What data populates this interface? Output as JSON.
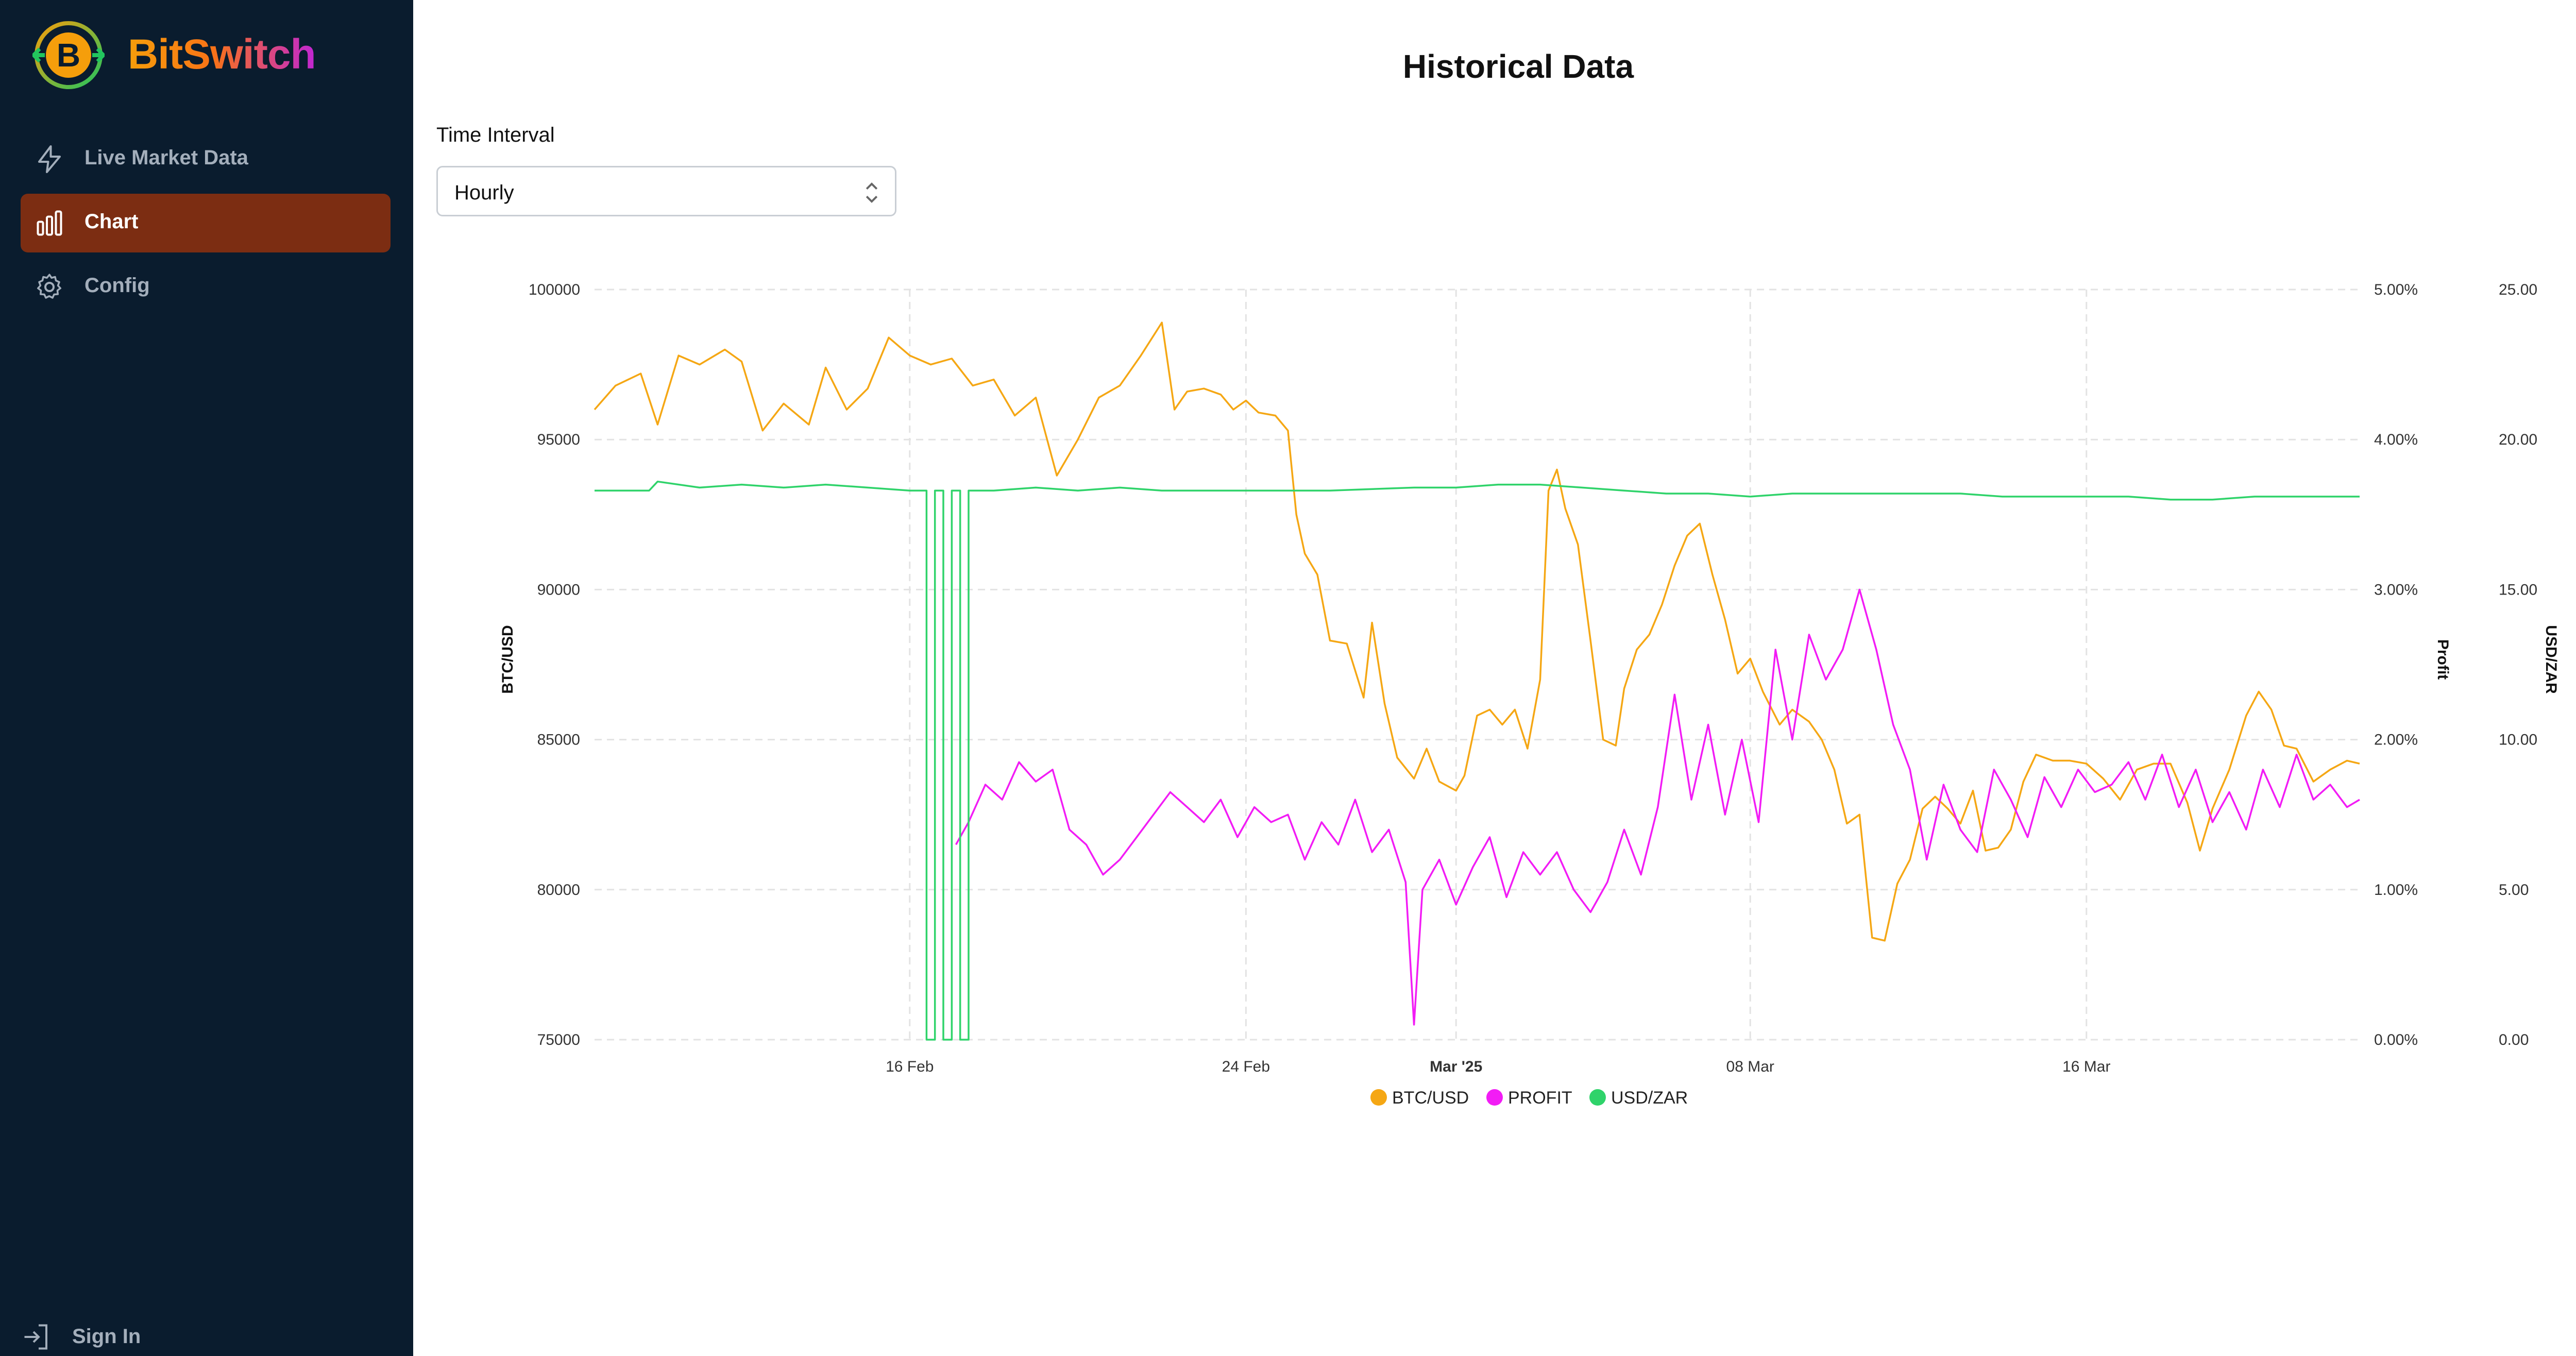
{
  "app": {
    "name": "BitSwitch"
  },
  "sidebar": {
    "items": [
      {
        "label": "Live Market Data",
        "icon": "lightning-icon",
        "active": false
      },
      {
        "label": "Chart",
        "icon": "bar-chart-icon",
        "active": true
      },
      {
        "label": "Config",
        "icon": "gear-icon",
        "active": false
      }
    ],
    "sign_in": "Sign In"
  },
  "page": {
    "title": "Historical Data",
    "time_interval_label": "Time Interval",
    "time_interval_value": "Hourly"
  },
  "colors": {
    "btc": "#f5a714",
    "profit": "#f21cf5",
    "usdzar": "#2fd36a",
    "sidebar_bg": "#0a1c2e",
    "active_bg": "#7c2d12"
  },
  "chart_data": {
    "type": "line",
    "x_ticks": [
      "16 Feb",
      "24 Feb",
      "Mar '25",
      "08 Mar",
      "16 Mar"
    ],
    "x_tick_days": [
      16,
      24,
      29,
      36,
      44
    ],
    "x_range_days": [
      8.5,
      50.5
    ],
    "axes": {
      "left": {
        "title": "BTC/USD",
        "ticks": [
          "100000",
          "95000",
          "90000",
          "85000",
          "80000",
          "75000"
        ],
        "range": [
          75000,
          100000
        ]
      },
      "right1": {
        "title": "",
        "ticks": [
          "5.00%",
          "4.00%",
          "3.00%",
          "2.00%",
          "1.00%",
          "0.00%"
        ],
        "range": [
          0,
          5
        ]
      },
      "right2": {
        "title": "USD/ZAR",
        "ticks": [
          "25.00",
          "20.00",
          "15.00",
          "10.00",
          "5.00",
          "0.00"
        ],
        "range": [
          0,
          25
        ]
      },
      "profit_title": "Profit"
    },
    "grid": true,
    "legend": {
      "position": "bottom",
      "entries": [
        "BTC/USD",
        "PROFIT",
        "USD/ZAR"
      ]
    },
    "series": [
      {
        "name": "BTC/USD",
        "axis": "left",
        "points": [
          [
            8.5,
            96000
          ],
          [
            9,
            96800
          ],
          [
            9.6,
            97200
          ],
          [
            10,
            95500
          ],
          [
            10.5,
            97800
          ],
          [
            11,
            97500
          ],
          [
            11.6,
            98000
          ],
          [
            12,
            97600
          ],
          [
            12.5,
            95300
          ],
          [
            13,
            96200
          ],
          [
            13.6,
            95500
          ],
          [
            14,
            97400
          ],
          [
            14.5,
            96000
          ],
          [
            15,
            96700
          ],
          [
            15.5,
            98400
          ],
          [
            16,
            97800
          ],
          [
            16.5,
            97500
          ],
          [
            17,
            97700
          ],
          [
            17.5,
            96800
          ],
          [
            18,
            97000
          ],
          [
            18.5,
            95800
          ],
          [
            19,
            96400
          ],
          [
            19.5,
            93800
          ],
          [
            20,
            95000
          ],
          [
            20.5,
            96400
          ],
          [
            21,
            96800
          ],
          [
            21.5,
            97800
          ],
          [
            22,
            98900
          ],
          [
            22.3,
            96000
          ],
          [
            22.6,
            96600
          ],
          [
            23,
            96700
          ],
          [
            23.4,
            96500
          ],
          [
            23.7,
            96000
          ],
          [
            24,
            96300
          ],
          [
            24.3,
            95900
          ],
          [
            24.7,
            95800
          ],
          [
            25,
            95300
          ],
          [
            25.2,
            92500
          ],
          [
            25.4,
            91200
          ],
          [
            25.7,
            90500
          ],
          [
            26,
            88300
          ],
          [
            26.4,
            88200
          ],
          [
            26.8,
            86400
          ],
          [
            27,
            88900
          ],
          [
            27.3,
            86200
          ],
          [
            27.6,
            84400
          ],
          [
            28,
            83700
          ],
          [
            28.3,
            84700
          ],
          [
            28.6,
            83600
          ],
          [
            29,
            83300
          ],
          [
            29.2,
            83800
          ],
          [
            29.5,
            85800
          ],
          [
            29.8,
            86000
          ],
          [
            30.1,
            85500
          ],
          [
            30.4,
            86000
          ],
          [
            30.7,
            84700
          ],
          [
            31,
            87000
          ],
          [
            31.2,
            93300
          ],
          [
            31.4,
            94000
          ],
          [
            31.6,
            92700
          ],
          [
            31.9,
            91500
          ],
          [
            32.2,
            88300
          ],
          [
            32.5,
            85000
          ],
          [
            32.8,
            84800
          ],
          [
            33,
            86700
          ],
          [
            33.3,
            88000
          ],
          [
            33.6,
            88500
          ],
          [
            33.9,
            89500
          ],
          [
            34.2,
            90800
          ],
          [
            34.5,
            91800
          ],
          [
            34.8,
            92200
          ],
          [
            35.1,
            90500
          ],
          [
            35.4,
            89000
          ],
          [
            35.7,
            87200
          ],
          [
            36,
            87700
          ],
          [
            36.3,
            86600
          ],
          [
            36.7,
            85500
          ],
          [
            37,
            86000
          ],
          [
            37.4,
            85600
          ],
          [
            37.7,
            85000
          ],
          [
            38,
            84000
          ],
          [
            38.3,
            82200
          ],
          [
            38.6,
            82500
          ],
          [
            38.9,
            78400
          ],
          [
            39.2,
            78300
          ],
          [
            39.5,
            80200
          ],
          [
            39.8,
            81000
          ],
          [
            40.1,
            82700
          ],
          [
            40.4,
            83100
          ],
          [
            40.7,
            82700
          ],
          [
            41,
            82200
          ],
          [
            41.3,
            83300
          ],
          [
            41.6,
            81300
          ],
          [
            41.9,
            81400
          ],
          [
            42.2,
            82000
          ],
          [
            42.5,
            83600
          ],
          [
            42.8,
            84500
          ],
          [
            43.2,
            84300
          ],
          [
            43.6,
            84300
          ],
          [
            44,
            84200
          ],
          [
            44.4,
            83700
          ],
          [
            44.8,
            83000
          ],
          [
            45.2,
            84000
          ],
          [
            45.6,
            84200
          ],
          [
            46,
            84200
          ],
          [
            46.4,
            82900
          ],
          [
            46.7,
            81300
          ],
          [
            47,
            82700
          ],
          [
            47.4,
            84000
          ],
          [
            47.8,
            85800
          ],
          [
            48.1,
            86600
          ],
          [
            48.4,
            86000
          ],
          [
            48.7,
            84800
          ],
          [
            49,
            84700
          ],
          [
            49.4,
            83600
          ],
          [
            49.8,
            84000
          ],
          [
            50.2,
            84300
          ],
          [
            50.5,
            84200
          ]
        ]
      },
      {
        "name": "PROFIT",
        "axis": "right1",
        "points": [
          [
            17.1,
            1.3
          ],
          [
            17.4,
            1.45
          ],
          [
            17.8,
            1.7
          ],
          [
            18.2,
            1.6
          ],
          [
            18.6,
            1.85
          ],
          [
            19,
            1.72
          ],
          [
            19.4,
            1.8
          ],
          [
            19.8,
            1.4
          ],
          [
            20.2,
            1.3
          ],
          [
            20.6,
            1.1
          ],
          [
            21,
            1.2
          ],
          [
            21.4,
            1.35
          ],
          [
            21.8,
            1.5
          ],
          [
            22.2,
            1.65
          ],
          [
            22.6,
            1.55
          ],
          [
            23,
            1.45
          ],
          [
            23.4,
            1.6
          ],
          [
            23.8,
            1.35
          ],
          [
            24.2,
            1.55
          ],
          [
            24.6,
            1.45
          ],
          [
            25,
            1.5
          ],
          [
            25.4,
            1.2
          ],
          [
            25.8,
            1.45
          ],
          [
            26.2,
            1.3
          ],
          [
            26.6,
            1.6
          ],
          [
            27,
            1.25
          ],
          [
            27.4,
            1.4
          ],
          [
            27.8,
            1.05
          ],
          [
            28,
            0.1
          ],
          [
            28.2,
            1.0
          ],
          [
            28.6,
            1.2
          ],
          [
            29,
            0.9
          ],
          [
            29.4,
            1.15
          ],
          [
            29.8,
            1.35
          ],
          [
            30.2,
            0.95
          ],
          [
            30.6,
            1.25
          ],
          [
            31,
            1.1
          ],
          [
            31.4,
            1.25
          ],
          [
            31.8,
            1.0
          ],
          [
            32.2,
            0.85
          ],
          [
            32.6,
            1.05
          ],
          [
            33,
            1.4
          ],
          [
            33.4,
            1.1
          ],
          [
            33.8,
            1.55
          ],
          [
            34.2,
            2.3
          ],
          [
            34.6,
            1.6
          ],
          [
            35,
            2.1
          ],
          [
            35.4,
            1.5
          ],
          [
            35.8,
            2.0
          ],
          [
            36.2,
            1.45
          ],
          [
            36.6,
            2.6
          ],
          [
            37,
            2.0
          ],
          [
            37.4,
            2.7
          ],
          [
            37.8,
            2.4
          ],
          [
            38.2,
            2.6
          ],
          [
            38.6,
            3.0
          ],
          [
            39,
            2.6
          ],
          [
            39.4,
            2.1
          ],
          [
            39.8,
            1.8
          ],
          [
            40.2,
            1.2
          ],
          [
            40.6,
            1.7
          ],
          [
            41,
            1.4
          ],
          [
            41.4,
            1.25
          ],
          [
            41.8,
            1.8
          ],
          [
            42.2,
            1.6
          ],
          [
            42.6,
            1.35
          ],
          [
            43,
            1.75
          ],
          [
            43.4,
            1.55
          ],
          [
            43.8,
            1.8
          ],
          [
            44.2,
            1.65
          ],
          [
            44.6,
            1.7
          ],
          [
            45,
            1.85
          ],
          [
            45.4,
            1.6
          ],
          [
            45.8,
            1.9
          ],
          [
            46.2,
            1.55
          ],
          [
            46.6,
            1.8
          ],
          [
            47,
            1.45
          ],
          [
            47.4,
            1.65
          ],
          [
            47.8,
            1.4
          ],
          [
            48.2,
            1.8
          ],
          [
            48.6,
            1.55
          ],
          [
            49,
            1.9
          ],
          [
            49.4,
            1.6
          ],
          [
            49.8,
            1.7
          ],
          [
            50.2,
            1.55
          ],
          [
            50.5,
            1.6
          ]
        ]
      },
      {
        "name": "USD/ZAR",
        "axis": "right2",
        "points": [
          [
            8.5,
            18.3
          ],
          [
            9.8,
            18.3
          ],
          [
            10,
            18.6
          ],
          [
            11,
            18.4
          ],
          [
            12,
            18.5
          ],
          [
            13,
            18.4
          ],
          [
            14,
            18.5
          ],
          [
            15,
            18.4
          ],
          [
            16,
            18.3
          ],
          [
            16.4,
            18.3
          ],
          [
            16.4,
            0
          ],
          [
            16.6,
            0
          ],
          [
            16.6,
            18.3
          ],
          [
            16.8,
            18.3
          ],
          [
            16.8,
            0
          ],
          [
            17,
            0
          ],
          [
            17,
            18.3
          ],
          [
            17.2,
            18.3
          ],
          [
            17.2,
            0
          ],
          [
            17.4,
            0
          ],
          [
            17.4,
            18.3
          ],
          [
            18,
            18.3
          ],
          [
            19,
            18.4
          ],
          [
            20,
            18.3
          ],
          [
            21,
            18.4
          ],
          [
            22,
            18.3
          ],
          [
            24,
            18.3
          ],
          [
            26,
            18.3
          ],
          [
            28,
            18.4
          ],
          [
            29,
            18.4
          ],
          [
            30,
            18.5
          ],
          [
            31,
            18.5
          ],
          [
            32,
            18.4
          ],
          [
            33,
            18.3
          ],
          [
            34,
            18.2
          ],
          [
            35,
            18.2
          ],
          [
            36,
            18.1
          ],
          [
            37,
            18.2
          ],
          [
            38,
            18.2
          ],
          [
            39,
            18.2
          ],
          [
            40,
            18.2
          ],
          [
            41,
            18.2
          ],
          [
            42,
            18.1
          ],
          [
            43,
            18.1
          ],
          [
            44,
            18.1
          ],
          [
            45,
            18.1
          ],
          [
            46,
            18.0
          ],
          [
            47,
            18.0
          ],
          [
            48,
            18.1
          ],
          [
            49,
            18.1
          ],
          [
            50.5,
            18.1
          ]
        ]
      }
    ]
  }
}
